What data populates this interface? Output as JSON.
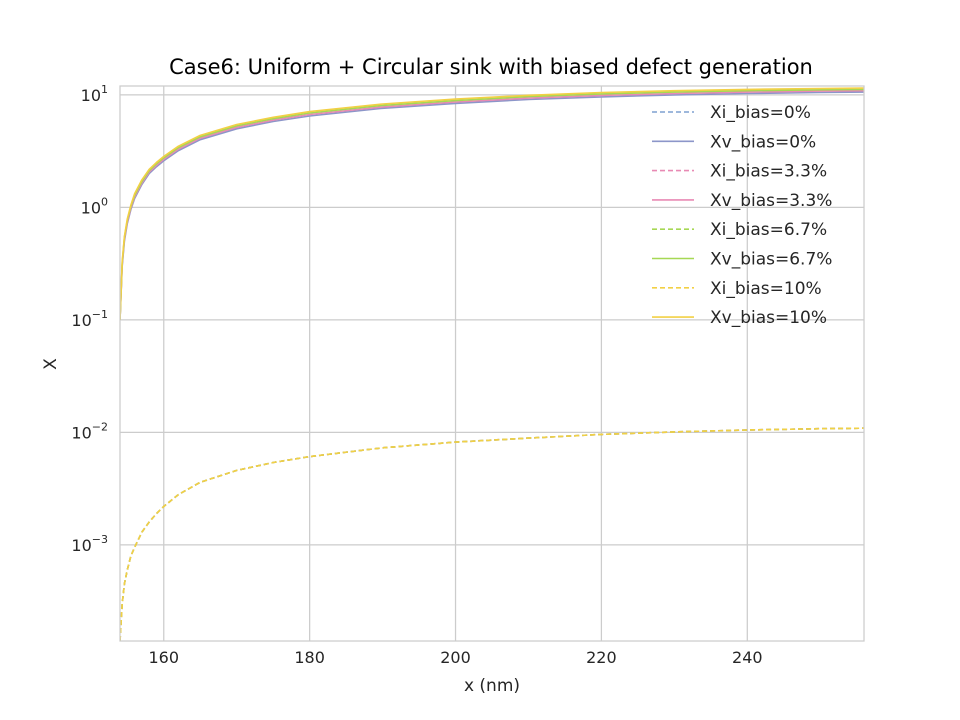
{
  "chart_data": {
    "type": "line",
    "title": "Case6: Uniform + Circular sink with biased defect generation",
    "xlabel": "x (nm)",
    "ylabel": "X",
    "xlim": [
      154,
      256
    ],
    "ylim": [
      0.00014,
      12
    ],
    "yscale": "log",
    "grid": true,
    "legend_position": "top-right",
    "x_ticks": [
      160,
      180,
      200,
      220,
      240
    ],
    "y_ticks": [
      {
        "value": 0.001,
        "base": "10",
        "exp": "−3"
      },
      {
        "value": 0.01,
        "base": "10",
        "exp": "−2"
      },
      {
        "value": 0.1,
        "base": "10",
        "exp": "−1"
      },
      {
        "value": 1,
        "base": "10",
        "exp": "0"
      },
      {
        "value": 10,
        "base": "10",
        "exp": "1"
      }
    ],
    "x": [
      154,
      154.3,
      154.6,
      155,
      155.5,
      156,
      157,
      158,
      159,
      160,
      162,
      165,
      170,
      175,
      180,
      190,
      200,
      210,
      220,
      230,
      240,
      250,
      256
    ],
    "series": [
      {
        "name": "Xi_bias=0%",
        "style": "dashed",
        "color": "#7fa0d0",
        "values": [
          0.00014,
          0.0003,
          0.00045,
          0.0006,
          0.0008,
          0.00095,
          0.0013,
          0.0016,
          0.0019,
          0.0022,
          0.0028,
          0.0036,
          0.0046,
          0.0054,
          0.0061,
          0.0073,
          0.0082,
          0.0089,
          0.0096,
          0.0101,
          0.0105,
          0.0108,
          0.0109
        ]
      },
      {
        "name": "Xv_bias=0%",
        "style": "solid",
        "color": "#8c96c9",
        "values": [
          0.1,
          0.3,
          0.5,
          0.72,
          0.96,
          1.2,
          1.6,
          2.0,
          2.3,
          2.6,
          3.2,
          4.0,
          5.0,
          5.8,
          6.5,
          7.6,
          8.4,
          9.1,
          9.6,
          10.0,
          10.3,
          10.5,
          10.6
        ]
      },
      {
        "name": "Xi_bias=3.3%",
        "style": "dashed",
        "color": "#e88ab4",
        "values": [
          0.00014,
          0.0003,
          0.00045,
          0.0006,
          0.0008,
          0.00095,
          0.0013,
          0.0016,
          0.0019,
          0.0022,
          0.0028,
          0.0036,
          0.0046,
          0.0054,
          0.0061,
          0.0073,
          0.0082,
          0.0089,
          0.0096,
          0.0101,
          0.0105,
          0.0108,
          0.0109
        ]
      },
      {
        "name": "Xv_bias=3.3%",
        "style": "solid",
        "color": "#e88ab4",
        "values": [
          0.1,
          0.31,
          0.52,
          0.74,
          0.99,
          1.24,
          1.65,
          2.06,
          2.37,
          2.68,
          3.3,
          4.12,
          5.15,
          5.97,
          6.7,
          7.83,
          8.65,
          9.37,
          9.89,
          10.3,
          10.6,
          10.8,
          10.9
        ]
      },
      {
        "name": "Xi_bias=6.7%",
        "style": "dashed",
        "color": "#a6d854",
        "values": [
          0.00014,
          0.0003,
          0.00045,
          0.0006,
          0.0008,
          0.00095,
          0.0013,
          0.0016,
          0.0019,
          0.0022,
          0.0028,
          0.0036,
          0.0046,
          0.0054,
          0.0061,
          0.0073,
          0.0082,
          0.0089,
          0.0096,
          0.0101,
          0.0105,
          0.0108,
          0.0109
        ]
      },
      {
        "name": "Xv_bias=6.7%",
        "style": "solid",
        "color": "#a6d854",
        "values": [
          0.1,
          0.32,
          0.54,
          0.77,
          1.02,
          1.28,
          1.7,
          2.12,
          2.44,
          2.76,
          3.4,
          4.24,
          5.3,
          6.15,
          6.9,
          8.06,
          8.9,
          9.65,
          10.2,
          10.6,
          10.9,
          11.1,
          11.2
        ]
      },
      {
        "name": "Xi_bias=10%",
        "style": "dashed",
        "color": "#f2d045",
        "values": [
          0.00014,
          0.0003,
          0.00045,
          0.0006,
          0.0008,
          0.00095,
          0.0013,
          0.0016,
          0.0019,
          0.0022,
          0.0028,
          0.0036,
          0.0046,
          0.0054,
          0.0061,
          0.0073,
          0.0082,
          0.0089,
          0.0096,
          0.0101,
          0.0105,
          0.0108,
          0.0109
        ]
      },
      {
        "name": "Xv_bias=10%",
        "style": "solid",
        "color": "#f2d045",
        "values": [
          0.1,
          0.33,
          0.55,
          0.79,
          1.05,
          1.32,
          1.76,
          2.18,
          2.51,
          2.84,
          3.5,
          4.37,
          5.46,
          6.33,
          7.1,
          8.3,
          9.17,
          9.93,
          10.5,
          10.9,
          11.2,
          11.4,
          11.5
        ]
      }
    ]
  }
}
